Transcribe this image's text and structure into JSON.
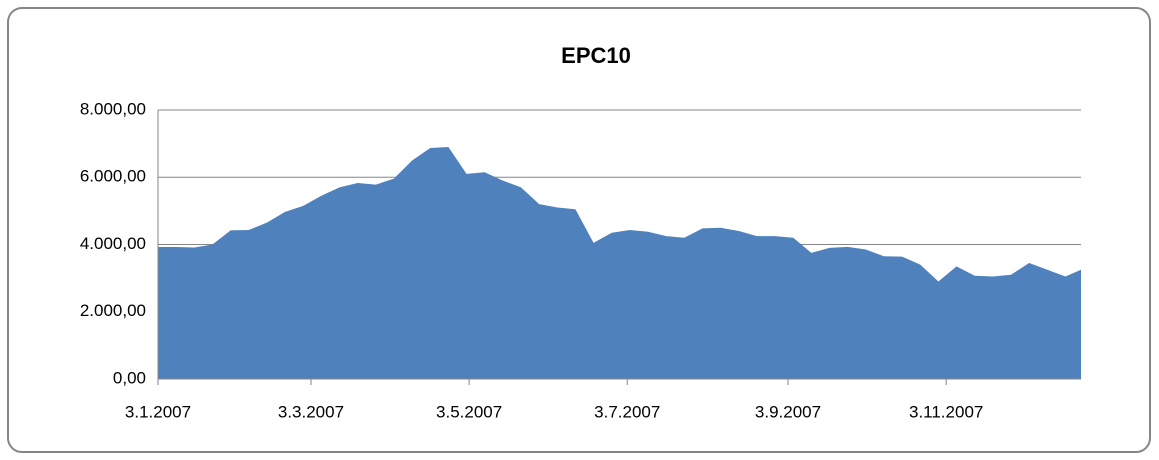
{
  "chart_data": {
    "type": "area",
    "title": "EPC10",
    "x": [
      "2007-01-03",
      "2007-01-10",
      "2007-01-17",
      "2007-01-24",
      "2007-01-31",
      "2007-02-07",
      "2007-02-14",
      "2007-02-21",
      "2007-02-28",
      "2007-03-07",
      "2007-03-14",
      "2007-03-21",
      "2007-03-28",
      "2007-04-04",
      "2007-04-11",
      "2007-04-18",
      "2007-04-25",
      "2007-05-02",
      "2007-05-09",
      "2007-05-16",
      "2007-05-23",
      "2007-05-30",
      "2007-06-06",
      "2007-06-13",
      "2007-06-20",
      "2007-06-27",
      "2007-07-04",
      "2007-07-11",
      "2007-07-18",
      "2007-07-25",
      "2007-08-01",
      "2007-08-08",
      "2007-08-15",
      "2007-08-22",
      "2007-08-29",
      "2007-09-05",
      "2007-09-12",
      "2007-09-19",
      "2007-09-26",
      "2007-10-03",
      "2007-10-10",
      "2007-10-17",
      "2007-10-24",
      "2007-10-31",
      "2007-11-07",
      "2007-11-14",
      "2007-11-21",
      "2007-11-28",
      "2007-12-05",
      "2007-12-12",
      "2007-12-19",
      "2007-12-25"
    ],
    "values": [
      3925,
      3925,
      3910,
      4000,
      4420,
      4430,
      4650,
      4970,
      5150,
      5450,
      5700,
      5830,
      5780,
      5960,
      6500,
      6870,
      6900,
      6100,
      6150,
      5900,
      5700,
      5200,
      5100,
      5050,
      4050,
      4350,
      4430,
      4380,
      4250,
      4200,
      4480,
      4500,
      4400,
      4250,
      4250,
      4200,
      3750,
      3900,
      3930,
      3850,
      3650,
      3640,
      3400,
      2900,
      3350,
      3070,
      3050,
      3100,
      3450,
      3250,
      3050,
      3250
    ],
    "color": "#4f81bd",
    "xlim": [
      "2007-01-03",
      "2007-12-25"
    ],
    "xticks": [
      {
        "value": "2007-01-03",
        "label": "3.1.2007"
      },
      {
        "value": "2007-03-03",
        "label": "3.3.2007"
      },
      {
        "value": "2007-05-03",
        "label": "3.5.2007"
      },
      {
        "value": "2007-07-03",
        "label": "3.7.2007"
      },
      {
        "value": "2007-09-03",
        "label": "3.9.2007"
      },
      {
        "value": "2007-11-03",
        "label": "3.11.2007"
      }
    ],
    "ylim": [
      0,
      8000
    ],
    "yticks": [
      {
        "value": 0,
        "label": "0,00"
      },
      {
        "value": 2000,
        "label": "2.000,00"
      },
      {
        "value": 4000,
        "label": "4.000,00"
      },
      {
        "value": 6000,
        "label": "6.000,00"
      },
      {
        "value": 8000,
        "label": "8.000,00"
      }
    ],
    "grid": true
  }
}
